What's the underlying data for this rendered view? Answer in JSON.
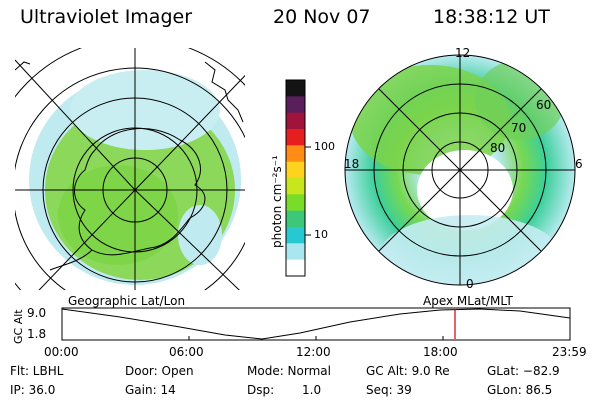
{
  "header": {
    "instrument": "Ultraviolet Imager",
    "date": "20 Nov 07",
    "time": "18:38:12 UT"
  },
  "colorbar": {
    "unit_label": "photon cm⁻²s⁻¹",
    "ticks": [
      "100",
      "10"
    ],
    "colors": [
      "#141414",
      "#5a1e5a",
      "#a0143c",
      "#e61e1e",
      "#ff8c14",
      "#ffd21e",
      "#c8e61e",
      "#78dc28",
      "#3cc878",
      "#28c8d2",
      "#aae6f0",
      "#ffffff"
    ]
  },
  "polar_left": {
    "caption": "Geographic Lat/Lon"
  },
  "polar_right": {
    "caption": "Apex MLat/MLT",
    "mlt_labels": [
      "12",
      "18",
      "6",
      "0"
    ],
    "lat_labels": [
      "60",
      "70",
      "80"
    ]
  },
  "altitude_plot": {
    "ylabel": "GC Alt",
    "yticks": [
      "9.0",
      "1.8"
    ],
    "xticks": [
      "00:00",
      "06:00",
      "12:00",
      "18:00",
      "23:59"
    ],
    "marker_color": "#c80000"
  },
  "footer": {
    "filter": "Flt: LBHL",
    "ip": "IP: 36.0",
    "door": "Door: Open",
    "gain": "Gain: 14",
    "mode": "Mode: Normal",
    "dsp": "Dsp:",
    "dsp_val": "1.0",
    "gc_alt": "GC Alt: 9.0 Re",
    "seq": "Seq: 39",
    "glat": "GLat: −82.9",
    "glon": "GLon:  86.5"
  }
}
